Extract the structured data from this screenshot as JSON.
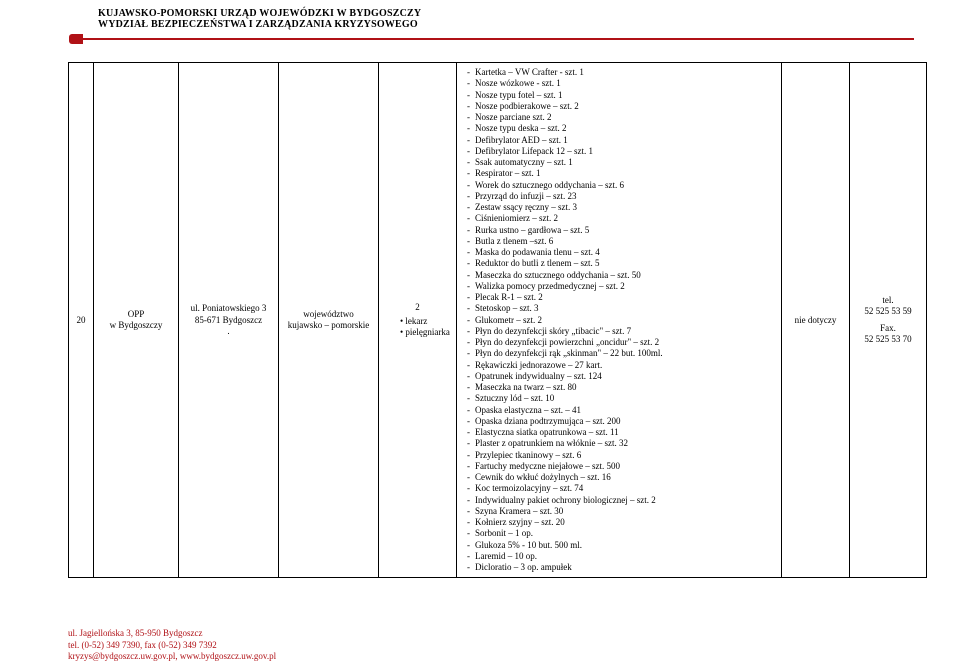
{
  "colors": {
    "accent": "#b01116",
    "text": "#000000",
    "bg": "#ffffff",
    "border": "#000000"
  },
  "header": {
    "line1": "KUJAWSKO-POMORSKI URZĄD WOJEWÓDZKI W BYDGOSZCZY",
    "line2": "WYDZIAŁ BEZPIECZEŃSTWA I ZARZĄDZANIA KRYZYSOWEGO"
  },
  "table": {
    "row": {
      "num": "20",
      "name_line1": "OPP",
      "name_line2": "w Bydgoszczy",
      "addr_line1": "ul. Poniatowskiego 3",
      "addr_line2": "85-671 Bydgoszcz",
      "addr_line3": ".",
      "region_line1": "województwo",
      "region_line2": "kujawsko – pomorskie",
      "count_val": "2",
      "count_b1": "lekarz",
      "count_b2": "pielęgniarka",
      "note": "nie dotyczy",
      "phone_line1": "tel.",
      "phone_line2": "52 525 53 59",
      "phone_line3": "Fax.",
      "phone_line4": "52 525 53 70",
      "items": [
        "Kartetka – VW Crafter - szt. 1",
        "Nosze wózkowe - szt. 1",
        "Nosze typu fotel – szt. 1",
        "Nosze podbierakowe – szt. 2",
        "Nosze parciane szt. 2",
        "Nosze typu deska – szt. 2",
        "Defibrylator AED – szt. 1",
        "Defibrylator Lifepack 12 – szt. 1",
        "Ssak automatyczny – szt. 1",
        "Respirator – szt. 1",
        "Worek do sztucznego oddychania – szt. 6",
        "Przyrząd do infuzji – szt. 23",
        "Zestaw ssący ręczny – szt. 3",
        "Ciśnieniomierz – szt. 2",
        "Rurka ustno – gardłowa – szt. 5",
        "Butla z tlenem –szt. 6",
        "Maska do podawania tlenu – szt. 4",
        "Reduktor do butli z tlenem – szt. 5",
        "Maseczka do sztucznego oddychania – szt. 50",
        "Walizka pomocy przedmedycznej – szt. 2",
        "Plecak R-1 – szt. 2",
        "Stetoskop – szt. 3",
        "Glukometr – szt. 2",
        "Płyn do dezynfekcji skóry „tibacic\" – szt. 7",
        "Płyn do dezynfekcji powierzchni „oncidur\" – szt. 2",
        "Płyn do dezynfekcji rąk „skinman\" – 22 but. 100ml.",
        "Rękawiczki jednorazowe – 27 kart.",
        "Opatrunek indywidualny – szt. 124",
        "Maseczka na twarz – szt. 80",
        "Sztuczny lód – szt. 10",
        "Opaska elastyczna – szt. – 41",
        "Opaska dziana podtrzymująca – szt. 200",
        "Elastyczna siatka opatrunkowa – szt. 11",
        "Plaster z opatrunkiem na włóknie – szt. 32",
        "Przylepiec tkaninowy – szt. 6",
        "Fartuchy medyczne niejałowe – szt. 500",
        "Cewnik do wkłuć dożylnych – szt. 16",
        "Koc termoizolacyjny – szt. 74",
        "Indywidualny pakiet ochrony biologicznej – szt. 2",
        "Szyna Kramera – szt. 30",
        "Kołnierz szyjny – szt. 20",
        "Sorbonit – 1 op.",
        "Glukoza 5% - 10 but. 500 ml.",
        "Laremid – 10 op.",
        "Dicloratio – 3 op. ampułek"
      ]
    }
  },
  "footer": {
    "line1": "ul. Jagiellońska 3, 85-950 Bydgoszcz",
    "line2": "tel. (0-52) 349 7390, fax (0-52) 349 7392",
    "line3": "kryzys@bydgoszcz.uw.gov.pl, www.bydgoszcz.uw.gov.pl"
  }
}
